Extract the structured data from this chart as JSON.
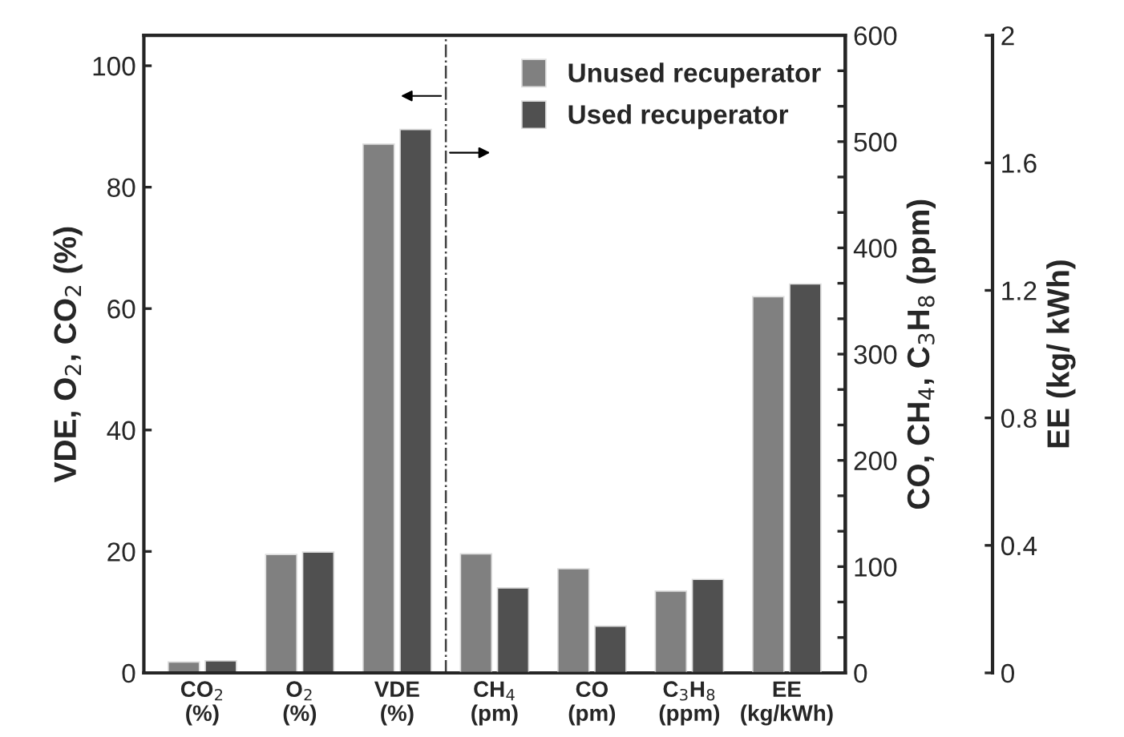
{
  "chart_data": {
    "type": "bar",
    "categories": [
      "CO$_{2}$\n(%)",
      "O$_{2}$\n(%)",
      "VDE\n(%)",
      "CH$_{4}$\n(pm)",
      "CO\n(pm)",
      "C$_{3}$H$_{8}$\n(ppm)",
      "EE\n(kg/kWh)"
    ],
    "ylabel": "VDE, O$_{2}$, CO$_{2}$ (%)",
    "y2label": "CO, CH$_{4}$, C$_{3}$H$_{8}$ (ppm)",
    "y3label": "EE (kg/ kWh)",
    "series": [
      {
        "name": "Unused recuperator",
        "color": "#808080",
        "axis": "y",
        "values": [
          1.8,
          19.5,
          87.1,
          null,
          null,
          null,
          null
        ]
      },
      {
        "name": "Used recuperator",
        "color": "#505050",
        "axis": "y",
        "values": [
          2.0,
          19.9,
          89.5,
          null,
          null,
          null,
          null
        ]
      },
      {
        "color": "#808080",
        "axis": "y2",
        "values": [
          null,
          null,
          null,
          112,
          98,
          77,
          null
        ]
      },
      {
        "color": "#505050",
        "axis": "y2",
        "values": [
          null,
          null,
          null,
          80,
          44,
          88,
          null
        ]
      },
      {
        "color": "#808080",
        "axis": "y3",
        "values": [
          null,
          null,
          null,
          null,
          null,
          null,
          1.18
        ]
      },
      {
        "color": "#505050",
        "axis": "y3",
        "values": [
          null,
          null,
          null,
          null,
          null,
          null,
          1.22
        ]
      }
    ],
    "ylim": [
      0,
      105
    ],
    "yticks": [
      0,
      20,
      40,
      60,
      80,
      100
    ],
    "y2lim": [
      0,
      600
    ],
    "y2ticks": [
      0,
      {
        "value": 33.3,
        "label": null
      },
      {
        "value": 66.7,
        "label": null
      },
      100,
      {
        "value": 133.3,
        "label": null
      },
      {
        "value": 166.7,
        "label": null
      },
      200,
      {
        "value": 233.3,
        "label": null
      },
      {
        "value": 266.7,
        "label": null
      },
      300,
      {
        "value": 333.3,
        "label": null
      },
      {
        "value": 366.7,
        "label": null
      },
      400,
      {
        "value": 433.3,
        "label": null
      },
      {
        "value": 466.7,
        "label": null
      },
      500,
      {
        "value": 533.3,
        "label": null
      },
      {
        "value": 566.7,
        "label": null
      },
      600
    ],
    "y3lim": [
      0,
      2
    ],
    "y3ticks": [
      0,
      0.4,
      0.8,
      1.2,
      1.6,
      2
    ],
    "legend": "top right",
    "grid": false
  }
}
